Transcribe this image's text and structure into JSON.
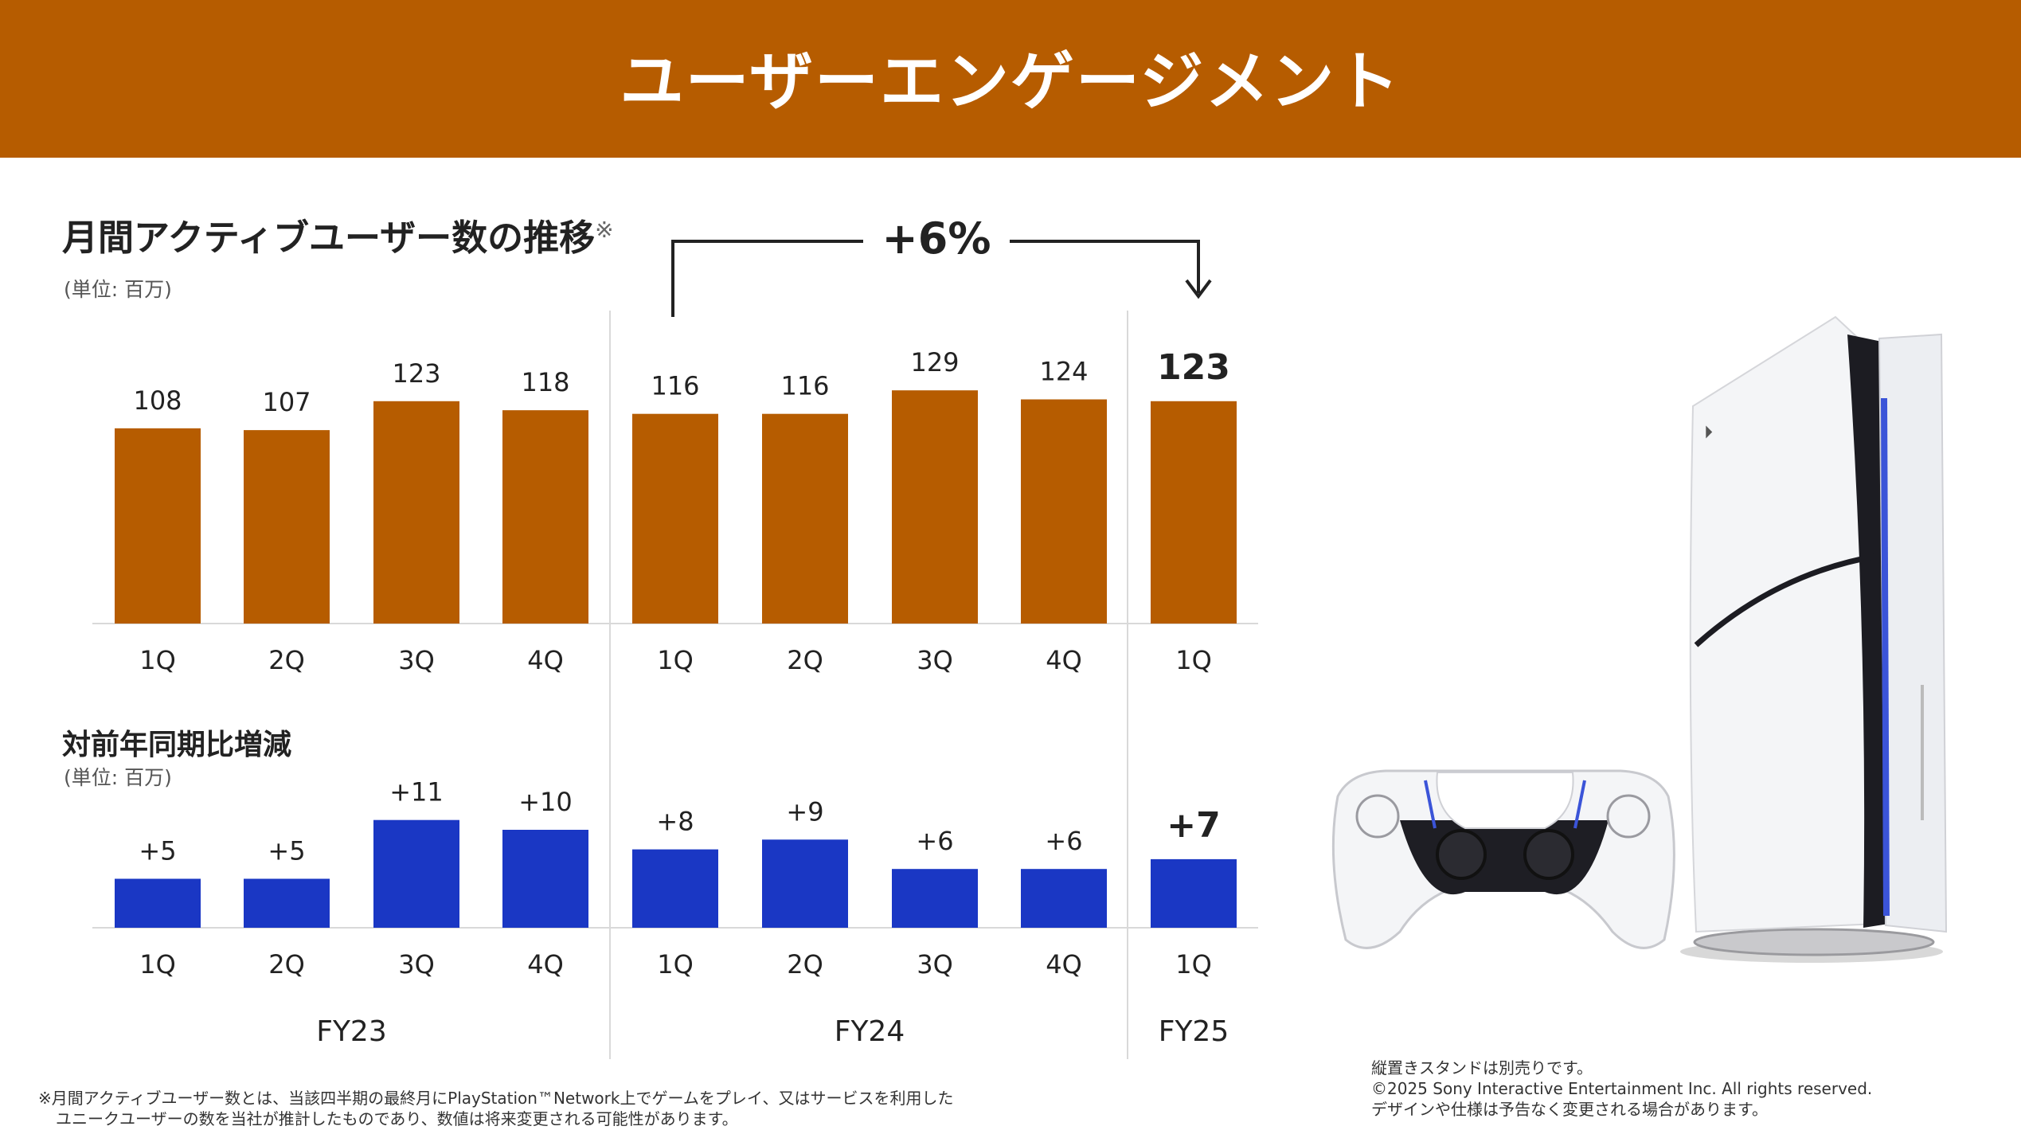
{
  "header": {
    "title": "ユーザーエンゲージメント",
    "bg_color": "#b65c00"
  },
  "mau": {
    "title": "月間アクティブユーザー数の推移",
    "title_mark": "※",
    "unit": "(単位: 百万)",
    "growth_label": "+6%"
  },
  "yoy": {
    "title": "対前年同期比増減",
    "unit": "(単位: 百万)"
  },
  "chart_data": [
    {
      "type": "bar",
      "title": "月間アクティブユーザー数の推移",
      "unit": "(単位: 百万)",
      "categories": [
        "1Q",
        "2Q",
        "3Q",
        "4Q",
        "1Q",
        "2Q",
        "3Q",
        "4Q",
        "1Q"
      ],
      "groups": [
        {
          "label": "FY23",
          "count": 4
        },
        {
          "label": "FY24",
          "count": 4
        },
        {
          "label": "FY25",
          "count": 1
        }
      ],
      "values": [
        108,
        107,
        123,
        118,
        116,
        116,
        129,
        124,
        123
      ],
      "value_labels": [
        "108",
        "107",
        "123",
        "118",
        "116",
        "116",
        "129",
        "124",
        "123"
      ],
      "highlight_index": 8,
      "color": "#b65c00",
      "annotation": {
        "text": "+6%",
        "from_index": 4,
        "to_index": 8
      },
      "ylim": [
        0,
        140
      ]
    },
    {
      "type": "bar",
      "title": "対前年同期比増減",
      "unit": "(単位: 百万)",
      "categories": [
        "1Q",
        "2Q",
        "3Q",
        "4Q",
        "1Q",
        "2Q",
        "3Q",
        "4Q",
        "1Q"
      ],
      "groups": [
        {
          "label": "FY23",
          "count": 4
        },
        {
          "label": "FY24",
          "count": 4
        },
        {
          "label": "FY25",
          "count": 1
        }
      ],
      "values": [
        5,
        5,
        11,
        10,
        8,
        9,
        6,
        6,
        7
      ],
      "value_labels": [
        "+5",
        "+5",
        "+11",
        "+10",
        "+8",
        "+9",
        "+6",
        "+6",
        "+7"
      ],
      "highlight_index": 8,
      "color": "#1a37c4",
      "ylim": [
        0,
        12
      ]
    }
  ],
  "footnotes": {
    "left_line1": "※月間アクティブユーザー数とは、当該四半期の最終月にPlayStation™Network上でゲームをプレイ、又はサービスを利用した",
    "left_line2": "ユニークユーザーの数を当社が推計したものであり、数値は将来変更される可能性があります。",
    "right_line1": "縦置きスタンドは別売りです。",
    "right_line2": "©2025 Sony Interactive Entertainment Inc. All rights reserved.",
    "right_line3": "デザインや仕様は予告なく変更される場合があります。"
  },
  "product_image": {
    "subject": "PS5 console and DualSense controller"
  }
}
